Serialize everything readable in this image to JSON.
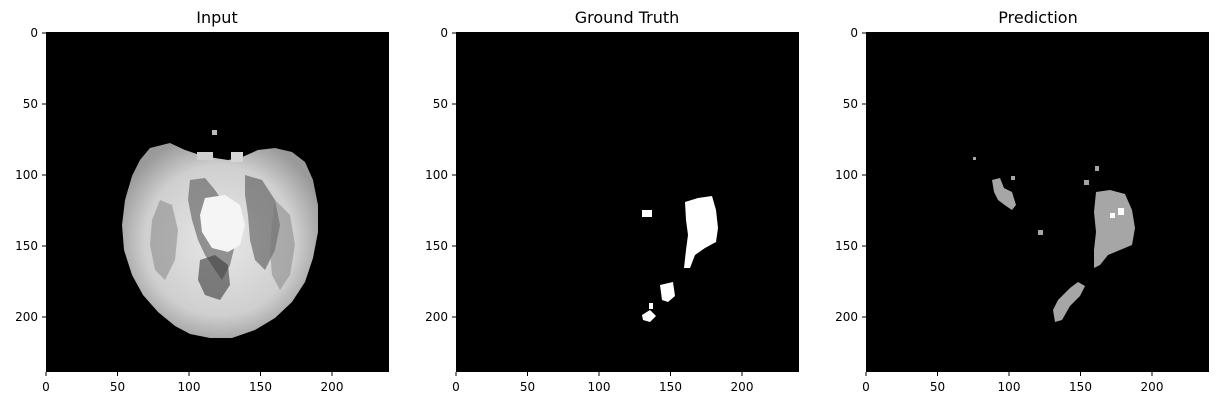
{
  "figure": {
    "panels": [
      {
        "key": "input",
        "title": "Input",
        "x_ticks": [
          "0",
          "50",
          "100",
          "150",
          "200"
        ],
        "y_ticks": [
          "0",
          "50",
          "100",
          "150",
          "200"
        ]
      },
      {
        "key": "ground_truth",
        "title": "Ground Truth",
        "x_ticks": [
          "0",
          "50",
          "100",
          "150",
          "200"
        ],
        "y_ticks": [
          "0",
          "50",
          "100",
          "150",
          "200"
        ]
      },
      {
        "key": "prediction",
        "title": "Prediction",
        "x_ticks": [
          "0",
          "50",
          "100",
          "150",
          "200"
        ],
        "y_ticks": [
          "0",
          "50",
          "100",
          "150",
          "200"
        ]
      }
    ],
    "image_extent": [
      0,
      240
    ],
    "colors": {
      "background": "#000000",
      "input_tissue": "#c8c8c8",
      "ground_truth_mask": "#ffffff",
      "prediction_mask": "#a6a6a6",
      "prediction_core": "#ffffff"
    }
  }
}
